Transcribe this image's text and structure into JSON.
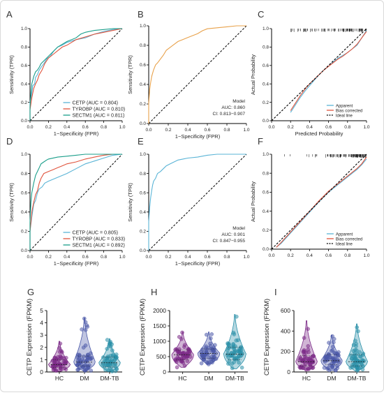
{
  "colors": {
    "cetp": "#5ab4d6",
    "tyrobp": "#e0533c",
    "sectm1": "#1a9e8a",
    "model": "#e8a14a",
    "apparent": "#5ab4d6",
    "bias": "#e0533c",
    "ideal": "#000000",
    "hc": "#7b2a87",
    "dm": "#4a58a8",
    "dmtb": "#2a8fa8"
  },
  "chart_data": [
    {
      "panel": "A",
      "type": "line",
      "xlabel": "1−Specificity (FPR)",
      "ylabel": "Sensitivity (TPR)",
      "xlim": [
        0,
        1
      ],
      "ylim": [
        0,
        1
      ],
      "xticks": [
        "0.0",
        "0.2",
        "0.4",
        "0.6",
        "0.8",
        "1.0"
      ],
      "yticks": [
        "0.0",
        "0.2",
        "0.4",
        "0.6",
        "0.8",
        "1.0"
      ],
      "legend_position": "bottom-right",
      "series": [
        {
          "name": "CETP (AUC = 0.804)",
          "color": "#5ab4d6",
          "x": [
            0,
            0,
            0.02,
            0.03,
            0.05,
            0.06,
            0.08,
            0.1,
            0.12,
            0.15,
            0.18,
            0.22,
            0.26,
            0.3,
            0.35,
            0.4,
            0.5,
            0.6,
            0.7,
            0.8,
            0.9,
            1.0
          ],
          "y": [
            0,
            0.2,
            0.3,
            0.38,
            0.4,
            0.47,
            0.5,
            0.55,
            0.58,
            0.62,
            0.67,
            0.7,
            0.76,
            0.8,
            0.82,
            0.85,
            0.88,
            0.9,
            0.94,
            0.97,
            0.99,
            1.0
          ]
        },
        {
          "name": "TYROBP (AUC = 0.810)",
          "color": "#e0533c",
          "x": [
            0,
            0,
            0.02,
            0.04,
            0.06,
            0.08,
            0.1,
            0.13,
            0.16,
            0.2,
            0.25,
            0.3,
            0.35,
            0.4,
            0.45,
            0.5,
            0.6,
            0.7,
            0.8,
            0.9,
            1.0
          ],
          "y": [
            0,
            0.12,
            0.25,
            0.35,
            0.4,
            0.44,
            0.5,
            0.55,
            0.62,
            0.68,
            0.72,
            0.76,
            0.8,
            0.82,
            0.85,
            0.88,
            0.91,
            0.94,
            0.96,
            0.98,
            1.0
          ]
        },
        {
          "name": "SECTM1 (AUC = 0.811)",
          "color": "#1a9e8a",
          "x": [
            0,
            0,
            0.01,
            0.02,
            0.04,
            0.06,
            0.08,
            0.1,
            0.12,
            0.16,
            0.2,
            0.25,
            0.3,
            0.4,
            0.5,
            0.55,
            0.6,
            0.7,
            0.8,
            0.9,
            1.0
          ],
          "y": [
            0,
            0.15,
            0.3,
            0.4,
            0.48,
            0.53,
            0.55,
            0.58,
            0.62,
            0.66,
            0.7,
            0.75,
            0.8,
            0.86,
            0.9,
            0.94,
            0.96,
            0.98,
            0.99,
            1.0,
            1.0
          ]
        }
      ]
    },
    {
      "panel": "B",
      "type": "line",
      "xlabel": "1−Specificity (FPR)",
      "ylabel": "Sensitivity (TPR)",
      "xlim": [
        0,
        1
      ],
      "ylim": [
        0,
        1
      ],
      "xticks": [
        "0.0",
        "0.2",
        "0.4",
        "0.6",
        "0.8",
        "1.0"
      ],
      "yticks": [
        "0.0",
        "0.2",
        "0.4",
        "0.6",
        "0.8",
        "1.0"
      ],
      "annotation": [
        "Model",
        "AUC: 0.860",
        "CI: 0.813−0.907"
      ],
      "series": [
        {
          "name": "Model",
          "color": "#e8a14a",
          "x": [
            0,
            0,
            0.01,
            0.02,
            0.03,
            0.05,
            0.07,
            0.09,
            0.12,
            0.15,
            0.18,
            0.22,
            0.26,
            0.3,
            0.35,
            0.4,
            0.45,
            0.5,
            0.55,
            0.6,
            0.7,
            0.8,
            0.9,
            1.0
          ],
          "y": [
            0,
            0.2,
            0.35,
            0.42,
            0.48,
            0.55,
            0.6,
            0.62,
            0.66,
            0.7,
            0.75,
            0.78,
            0.81,
            0.84,
            0.86,
            0.88,
            0.9,
            0.92,
            0.95,
            0.97,
            0.98,
            0.99,
            1.0,
            1.0
          ]
        }
      ]
    },
    {
      "panel": "C",
      "type": "line",
      "xlabel": "Predicted Probability",
      "ylabel": "Actual Probability",
      "xlim": [
        0,
        1
      ],
      "ylim": [
        0,
        1
      ],
      "xticks": [
        "0.0",
        "0.2",
        "0.4",
        "0.6",
        "0.8",
        "1.0"
      ],
      "yticks": [
        "0.0",
        "0.2",
        "0.4",
        "0.6",
        "0.8",
        "1.0"
      ],
      "legend_position": "bottom-right",
      "series": [
        {
          "name": "Apparent",
          "color": "#5ab4d6",
          "x": [
            0.2,
            0.25,
            0.3,
            0.35,
            0.4,
            0.45,
            0.5,
            0.55,
            0.6,
            0.65,
            0.7,
            0.75,
            0.8,
            0.85,
            0.9,
            0.95,
            1.0
          ],
          "y": [
            0.09,
            0.17,
            0.25,
            0.32,
            0.38,
            0.44,
            0.5,
            0.55,
            0.59,
            0.64,
            0.68,
            0.71,
            0.74,
            0.78,
            0.82,
            0.9,
            0.98
          ]
        },
        {
          "name": "Bias corrected",
          "color": "#e0533c",
          "x": [
            0.2,
            0.25,
            0.3,
            0.35,
            0.4,
            0.45,
            0.5,
            0.55,
            0.6,
            0.65,
            0.7,
            0.75,
            0.8,
            0.85,
            0.9,
            0.95,
            1.0
          ],
          "y": [
            0.11,
            0.19,
            0.27,
            0.34,
            0.4,
            0.45,
            0.5,
            0.55,
            0.59,
            0.63,
            0.67,
            0.7,
            0.74,
            0.78,
            0.83,
            0.9,
            0.97
          ]
        },
        {
          "name": "Ideal line",
          "color": "#000000",
          "dashed": true,
          "x": [
            0,
            1
          ],
          "y": [
            0,
            1
          ]
        }
      ]
    },
    {
      "panel": "D",
      "type": "line",
      "xlabel": "1−Specificity (FPR)",
      "ylabel": "Sensitivity (TPR)",
      "xlim": [
        0,
        1
      ],
      "ylim": [
        0,
        1
      ],
      "xticks": [
        "0.0",
        "0.2",
        "0.4",
        "0.6",
        "0.8",
        "1.0"
      ],
      "yticks": [
        "0.0",
        "0.2",
        "0.4",
        "0.6",
        "0.8",
        "1.0"
      ],
      "legend_position": "bottom-right",
      "series": [
        {
          "name": "CETP (AUC = 0.805)",
          "color": "#5ab4d6",
          "x": [
            0,
            0,
            0.02,
            0.04,
            0.06,
            0.08,
            0.1,
            0.13,
            0.16,
            0.2,
            0.25,
            0.3,
            0.35,
            0.4,
            0.5,
            0.6,
            0.7,
            0.8,
            0.9,
            1.0
          ],
          "y": [
            0,
            0.2,
            0.35,
            0.48,
            0.52,
            0.6,
            0.64,
            0.66,
            0.7,
            0.72,
            0.74,
            0.76,
            0.78,
            0.8,
            0.85,
            0.9,
            0.93,
            0.96,
            0.99,
            1.0
          ]
        },
        {
          "name": "TYROBP (AUC = 0.833)",
          "color": "#e0533c",
          "x": [
            0,
            0,
            0.02,
            0.04,
            0.06,
            0.08,
            0.1,
            0.12,
            0.15,
            0.2,
            0.25,
            0.3,
            0.35,
            0.4,
            0.5,
            0.6,
            0.7,
            0.8,
            0.9,
            1.0
          ],
          "y": [
            0,
            0.2,
            0.4,
            0.5,
            0.58,
            0.62,
            0.7,
            0.75,
            0.8,
            0.82,
            0.84,
            0.86,
            0.88,
            0.9,
            0.92,
            0.95,
            0.97,
            0.99,
            1.0,
            1.0
          ]
        },
        {
          "name": "SECTM1 (AUC = 0.892)",
          "color": "#1a9e8a",
          "x": [
            0,
            0,
            0.01,
            0.02,
            0.04,
            0.06,
            0.08,
            0.1,
            0.12,
            0.15,
            0.18,
            0.2,
            0.3,
            0.4,
            0.5,
            0.6,
            0.7,
            0.8,
            1.0
          ],
          "y": [
            0,
            0.3,
            0.5,
            0.6,
            0.7,
            0.78,
            0.82,
            0.86,
            0.9,
            0.92,
            0.94,
            0.95,
            0.97,
            0.98,
            0.99,
            1.0,
            1.0,
            1.0,
            1.0
          ]
        }
      ]
    },
    {
      "panel": "E",
      "type": "line",
      "xlabel": "1−Specificity (FPR)",
      "ylabel": "Sensitivity (TPR)",
      "xlim": [
        0,
        1
      ],
      "ylim": [
        0,
        1
      ],
      "xticks": [
        "0.0",
        "0.2",
        "0.4",
        "0.6",
        "0.8",
        "1.0"
      ],
      "yticks": [
        "0.0",
        "0.2",
        "0.4",
        "0.6",
        "0.8",
        "1.0"
      ],
      "annotation": [
        "Model",
        "AUC: 0.901",
        "CI: 0.847−0.955"
      ],
      "series": [
        {
          "name": "Model",
          "color": "#5ab4d6",
          "x": [
            0,
            0,
            0.01,
            0.02,
            0.03,
            0.04,
            0.05,
            0.07,
            0.09,
            0.12,
            0.15,
            0.18,
            0.22,
            0.26,
            0.3,
            0.35,
            0.4,
            0.5,
            0.6,
            0.7,
            0.8,
            0.9,
            1.0
          ],
          "y": [
            0,
            0.3,
            0.45,
            0.55,
            0.62,
            0.68,
            0.72,
            0.75,
            0.8,
            0.82,
            0.85,
            0.88,
            0.9,
            0.92,
            0.94,
            0.95,
            0.96,
            0.97,
            0.99,
            1.0,
            1.0,
            1.0,
            1.0
          ]
        }
      ]
    },
    {
      "panel": "F",
      "type": "line",
      "xlabel": "",
      "ylabel": "Actual Probability",
      "xlim": [
        0,
        1
      ],
      "ylim": [
        0,
        1
      ],
      "xticks": [
        "0.0",
        "0.2",
        "0.4",
        "0.6",
        "0.8",
        "1.0"
      ],
      "yticks": [
        "0.0",
        "0.2",
        "0.4",
        "0.6",
        "0.8",
        "1.0"
      ],
      "legend_position": "bottom-right",
      "series": [
        {
          "name": "Apparent",
          "color": "#5ab4d6",
          "x": [
            0.05,
            0.1,
            0.2,
            0.3,
            0.4,
            0.5,
            0.6,
            0.7,
            0.8,
            0.9,
            0.95,
            1.0
          ],
          "y": [
            0.02,
            0.06,
            0.17,
            0.28,
            0.39,
            0.5,
            0.6,
            0.68,
            0.76,
            0.84,
            0.89,
            0.95
          ]
        },
        {
          "name": "Bias corrected",
          "color": "#e0533c",
          "x": [
            0.05,
            0.1,
            0.2,
            0.3,
            0.4,
            0.5,
            0.6,
            0.7,
            0.8,
            0.9,
            0.95,
            1.0
          ],
          "y": [
            0.02,
            0.07,
            0.18,
            0.29,
            0.4,
            0.51,
            0.61,
            0.69,
            0.77,
            0.85,
            0.9,
            0.97
          ]
        },
        {
          "name": "Ideal line",
          "color": "#000000",
          "dashed": true,
          "x": [
            0,
            1
          ],
          "y": [
            0,
            1
          ]
        }
      ]
    },
    {
      "panel": "G",
      "type": "violin",
      "ylabel": "CETP Expression (FPKM)",
      "categories": [
        "HC",
        "DM",
        "DM-TB"
      ],
      "ylim": [
        0,
        5
      ],
      "yticks": [
        "0",
        "1",
        "2",
        "3",
        "4",
        "5"
      ],
      "series": [
        {
          "name": "HC",
          "color": "#7b2a87",
          "min": 0.05,
          "q1": 0.35,
          "median": 0.6,
          "q3": 1.0,
          "max": 2.5
        },
        {
          "name": "DM",
          "color": "#4a58a8",
          "min": 0.1,
          "q1": 0.5,
          "median": 0.8,
          "q3": 1.3,
          "max": 4.4
        },
        {
          "name": "DM-TB",
          "color": "#2a8fa8",
          "min": 0.05,
          "q1": 0.4,
          "median": 0.75,
          "q3": 1.2,
          "max": 2.7
        }
      ]
    },
    {
      "panel": "H",
      "type": "violin",
      "ylabel": "CETP Expression (FPKM)",
      "categories": [
        "HC",
        "DM",
        "DM-TB"
      ],
      "ylim": [
        0,
        2000
      ],
      "yticks": [
        "0",
        "500",
        "1000",
        "1500",
        "2000"
      ],
      "series": [
        {
          "name": "HC",
          "color": "#7b2a87",
          "min": 150,
          "q1": 400,
          "median": 560,
          "q3": 720,
          "max": 1300
        },
        {
          "name": "DM",
          "color": "#4a58a8",
          "min": 250,
          "q1": 450,
          "median": 600,
          "q3": 750,
          "max": 1300
        },
        {
          "name": "DM-TB",
          "color": "#2a8fa8",
          "min": 100,
          "q1": 400,
          "median": 580,
          "q3": 800,
          "max": 1870
        }
      ]
    },
    {
      "panel": "I",
      "type": "violin",
      "ylabel": "CETP Expression (FPKM)",
      "categories": [
        "HC",
        "DM",
        "DM-TB"
      ],
      "ylim": [
        0,
        600
      ],
      "yticks": [
        "0",
        "200",
        "400",
        "600"
      ],
      "series": [
        {
          "name": "HC",
          "color": "#7b2a87",
          "min": 20,
          "q1": 60,
          "median": 100,
          "q3": 160,
          "max": 500
        },
        {
          "name": "DM",
          "color": "#4a58a8",
          "min": 15,
          "q1": 70,
          "median": 110,
          "q3": 170,
          "max": 360
        },
        {
          "name": "DM-TB",
          "color": "#2a8fa8",
          "min": 10,
          "q1": 60,
          "median": 100,
          "q3": 170,
          "max": 470
        }
      ]
    }
  ]
}
